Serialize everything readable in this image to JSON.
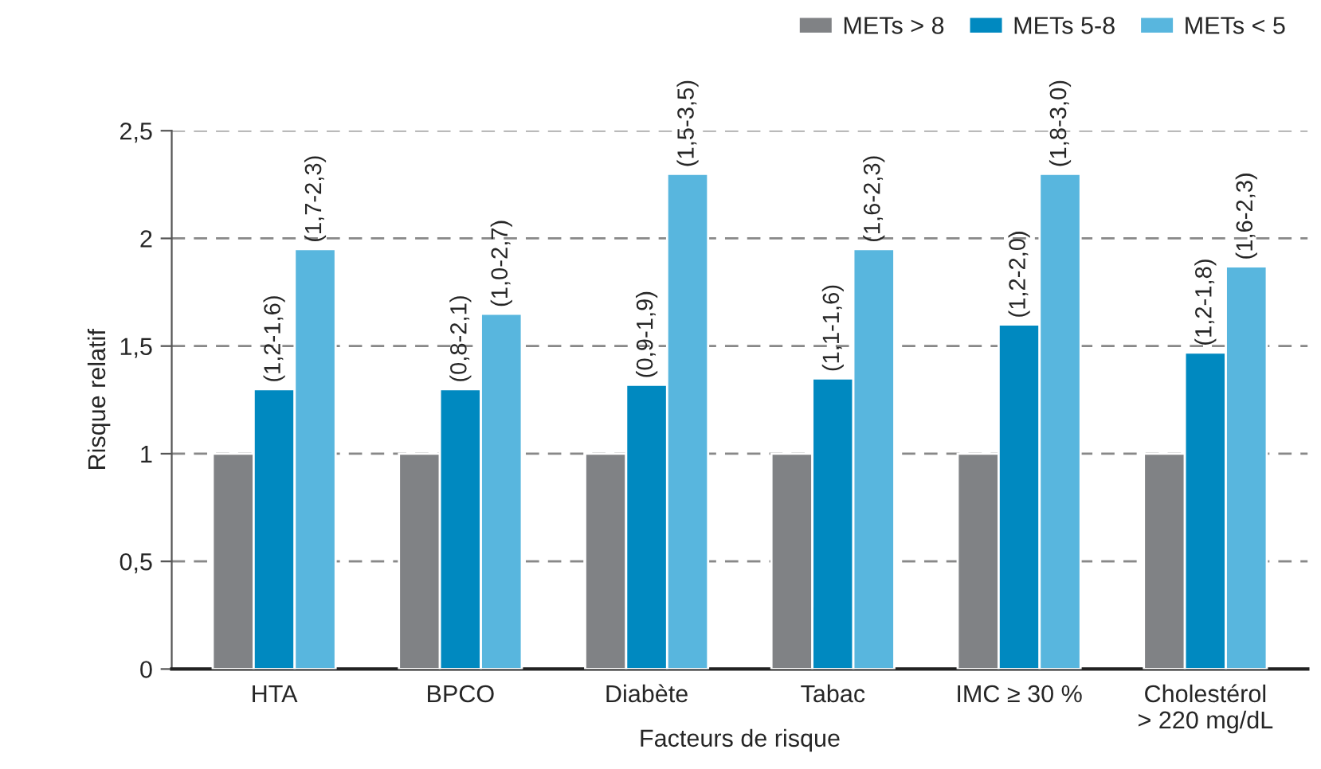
{
  "chart_data": {
    "type": "bar",
    "xlabel": "Facteurs de risque",
    "ylabel": "Risque relatif",
    "categories": [
      "HTA",
      "BPCO",
      "Diabète",
      "Tabac",
      "IMC ≥ 30 %",
      "Cholestérol\n> 220 mg/dL"
    ],
    "series": [
      {
        "name": "METs > 8",
        "color": "#808285",
        "values": [
          1,
          1,
          1,
          1,
          1,
          1
        ]
      },
      {
        "name": "METs 5-8",
        "color": "#0089c0",
        "values": [
          1.3,
          1.3,
          1.32,
          1.35,
          1.6,
          1.47
        ],
        "value_labels": [
          "(1,2-1,6)",
          "(0,8-2,1)",
          "(0,9-1,9)",
          "(1,1-1,6)",
          "(1,2-2,0)",
          "(1,2-1,8)"
        ]
      },
      {
        "name": "METs < 5",
        "color": "#58b6de",
        "values": [
          1.95,
          1.65,
          2.3,
          1.95,
          2.3,
          1.87
        ],
        "value_labels": [
          "(1,7-2,3)",
          "(1,0-2,7)",
          "(1,5-3,5)",
          "(1,6-2,3)",
          "(1,8-3,0)",
          "(1,6-2,3)"
        ]
      }
    ],
    "ylim": [
      0,
      2.5
    ],
    "yticks": [
      {
        "value": 0,
        "label": "0"
      },
      {
        "value": 0.5,
        "label": "0,5"
      },
      {
        "value": 1,
        "label": "1"
      },
      {
        "value": 1.5,
        "label": "1,5"
      },
      {
        "value": 2,
        "label": "2"
      },
      {
        "value": 2.5,
        "label": "2,5"
      }
    ],
    "grid": "y",
    "legend": "top right"
  }
}
